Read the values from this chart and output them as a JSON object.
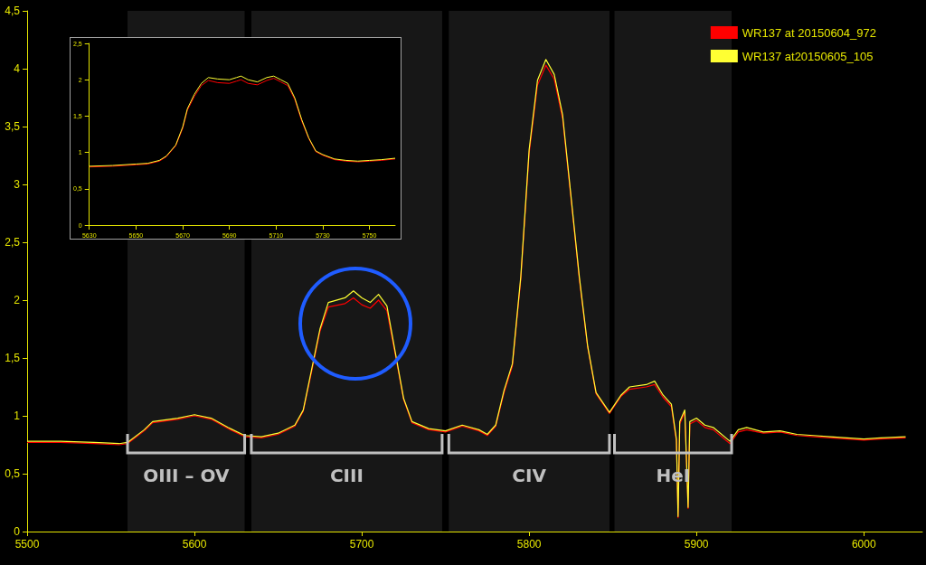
{
  "chart_data": [
    {
      "type": "line",
      "xlim": [
        5500,
        6035
      ],
      "xticks": [
        5500,
        5600,
        5700,
        5800,
        5900,
        6000
      ],
      "ylim": [
        0,
        4.5
      ],
      "yticks": [
        0,
        {
          "value": 0.5,
          "label": "0,5"
        },
        1,
        {
          "value": 1.5,
          "label": "1,5"
        },
        2,
        {
          "value": 2.5,
          "label": "2,5"
        },
        3,
        {
          "value": 3.5,
          "label": "3,5"
        },
        4,
        {
          "value": 4.5,
          "label": "4,5"
        }
      ],
      "grid": false,
      "legend": "top right",
      "marker": "none",
      "line_style": "solid",
      "x": [
        5500,
        5520,
        5540,
        5555,
        5560,
        5570,
        5575,
        5580,
        5590,
        5600,
        5610,
        5620,
        5630,
        5640,
        5650,
        5660,
        5665,
        5670,
        5675,
        5680,
        5690,
        5695,
        5700,
        5705,
        5710,
        5715,
        5720,
        5725,
        5730,
        5740,
        5750,
        5760,
        5770,
        5775,
        5780,
        5785,
        5790,
        5795,
        5800,
        5805,
        5810,
        5815,
        5820,
        5825,
        5830,
        5835,
        5840,
        5848,
        5855,
        5860,
        5870,
        5875,
        5880,
        5885,
        5888,
        5889,
        5890,
        5893,
        5895,
        5896,
        5900,
        5905,
        5910,
        5920,
        5925,
        5930,
        5940,
        5950,
        5960,
        5970,
        5980,
        5990,
        6000,
        6010,
        6025
      ],
      "series": [
        {
          "name": "WR137 at 20150604_972",
          "color": "#ff0000",
          "values": [
            0.77,
            0.77,
            0.76,
            0.75,
            0.76,
            0.87,
            0.94,
            0.95,
            0.97,
            1.0,
            0.97,
            0.89,
            0.82,
            0.81,
            0.84,
            0.91,
            1.04,
            1.38,
            1.73,
            1.94,
            1.97,
            2.02,
            1.96,
            1.93,
            2.0,
            1.91,
            1.53,
            1.14,
            0.94,
            0.88,
            0.86,
            0.91,
            0.87,
            0.83,
            0.91,
            1.2,
            1.43,
            2.18,
            3.27,
            3.86,
            4.03,
            3.91,
            3.57,
            2.88,
            2.18,
            1.59,
            1.19,
            1.02,
            1.17,
            1.23,
            1.25,
            1.27,
            1.16,
            1.08,
            0.78,
            0.12,
            0.93,
            1.03,
            0.2,
            0.93,
            0.96,
            0.9,
            0.88,
            0.76,
            0.86,
            0.88,
            0.85,
            0.86,
            0.83,
            0.82,
            0.81,
            0.8,
            0.79,
            0.8,
            0.81
          ]
        },
        {
          "name": "WR137 at20150605_105",
          "color": "#ffff33",
          "values": [
            0.78,
            0.78,
            0.77,
            0.76,
            0.77,
            0.88,
            0.95,
            0.96,
            0.98,
            1.01,
            0.98,
            0.9,
            0.83,
            0.82,
            0.85,
            0.92,
            1.05,
            1.4,
            1.75,
            1.98,
            2.02,
            2.08,
            2.02,
            1.98,
            2.05,
            1.95,
            1.55,
            1.15,
            0.95,
            0.89,
            0.87,
            0.92,
            0.88,
            0.84,
            0.92,
            1.22,
            1.45,
            2.2,
            3.3,
            3.9,
            4.08,
            3.95,
            3.6,
            2.9,
            2.2,
            1.6,
            1.2,
            1.03,
            1.18,
            1.25,
            1.27,
            1.3,
            1.18,
            1.1,
            0.8,
            0.13,
            0.95,
            1.05,
            0.21,
            0.95,
            0.98,
            0.92,
            0.9,
            0.78,
            0.88,
            0.9,
            0.86,
            0.87,
            0.84,
            0.83,
            0.82,
            0.81,
            0.8,
            0.81,
            0.82
          ]
        }
      ],
      "bands": [
        {
          "axis": "x",
          "from": 5560,
          "to": 5630,
          "label": "OIII – OV",
          "color": "#c0c0c0"
        },
        {
          "axis": "x",
          "from": 5634,
          "to": 5748,
          "label": "CIII",
          "color": "#c0c0c0"
        },
        {
          "axis": "x",
          "from": 5752,
          "to": 5848,
          "label": "CIV",
          "color": "#c0c0c0"
        },
        {
          "axis": "x",
          "from": 5851,
          "to": 5921,
          "label": "HeI",
          "color": "#c0c0c0"
        }
      ]
    },
    {
      "type": "line",
      "xlim": [
        5630,
        5761
      ],
      "xticks": [
        5630,
        5650,
        5670,
        5690,
        5710,
        5730,
        5750
      ],
      "ylim": [
        0,
        2.5
      ],
      "yticks": [
        0,
        {
          "value": 0.5,
          "label": "0,5"
        },
        1,
        {
          "value": 1.5,
          "label": "1,5"
        },
        2,
        {
          "value": 2.5,
          "label": "2,5"
        }
      ],
      "grid": false,
      "legend": false,
      "marker": "none",
      "line_style": "solid",
      "x": [
        5630,
        5640,
        5650,
        5655,
        5660,
        5663,
        5667,
        5670,
        5672,
        5675,
        5678,
        5681,
        5685,
        5690,
        5693,
        5695,
        5698,
        5702,
        5706,
        5709,
        5712,
        5715,
        5718,
        5721,
        5724,
        5727,
        5730,
        5735,
        5740,
        5745,
        5750,
        5755,
        5761
      ],
      "series": [
        {
          "color": "#ff0000",
          "values": [
            0.8,
            0.81,
            0.83,
            0.84,
            0.88,
            0.94,
            1.09,
            1.33,
            1.58,
            1.77,
            1.92,
            1.99,
            1.96,
            1.95,
            1.98,
            2.0,
            1.95,
            1.93,
            1.99,
            2.02,
            1.97,
            1.92,
            1.73,
            1.43,
            1.19,
            1.01,
            0.96,
            0.9,
            0.88,
            0.87,
            0.88,
            0.89,
            0.91
          ]
        },
        {
          "color": "#ffff33",
          "values": [
            0.81,
            0.82,
            0.84,
            0.85,
            0.89,
            0.95,
            1.1,
            1.35,
            1.6,
            1.8,
            1.95,
            2.03,
            2.01,
            2.0,
            2.03,
            2.05,
            2.0,
            1.97,
            2.03,
            2.05,
            2.0,
            1.95,
            1.75,
            1.45,
            1.2,
            1.02,
            0.97,
            0.91,
            0.89,
            0.88,
            0.89,
            0.9,
            0.92
          ]
        }
      ]
    }
  ]
}
